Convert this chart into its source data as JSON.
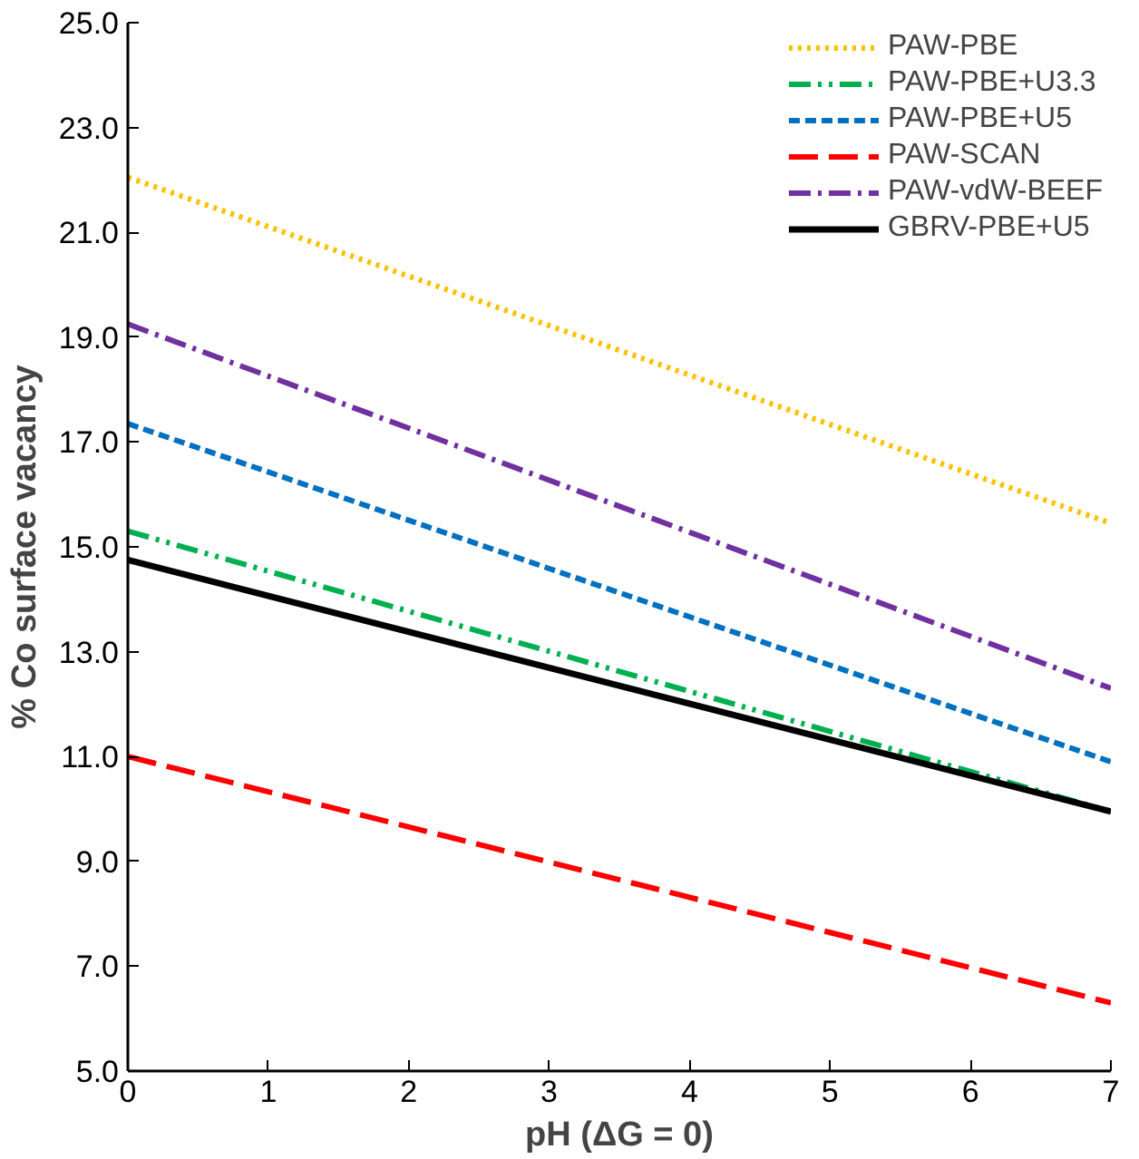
{
  "chart_data": {
    "type": "line",
    "xlabel": "pH (ΔG = 0)",
    "ylabel": "% Co surface vacancy",
    "x": [
      0,
      7
    ],
    "series": [
      {
        "name": "PAW-PBE",
        "color": "#ffc000",
        "values": [
          22.05,
          15.45
        ],
        "line_style": "dotted"
      },
      {
        "name": "PAW-PBE+U3.3",
        "color": "#00b050",
        "values": [
          15.3,
          9.95
        ],
        "line_style": "dashdotdot"
      },
      {
        "name": "PAW-PBE+U5",
        "color": "#0070c0",
        "values": [
          17.35,
          10.9
        ],
        "line_style": "dashed"
      },
      {
        "name": "PAW-SCAN",
        "color": "#ff0000",
        "values": [
          11.0,
          6.3
        ],
        "line_style": "longdash"
      },
      {
        "name": "PAW-vdW-BEEF",
        "color": "#7030a0",
        "values": [
          19.25,
          12.3
        ],
        "line_style": "dashdot"
      },
      {
        "name": "GBRV-PBE+U5",
        "color": "#000000",
        "values": [
          14.75,
          9.95
        ],
        "line_style": "solid"
      }
    ],
    "xlim": [
      0,
      7
    ],
    "xticks": [
      0,
      1,
      2,
      3,
      4,
      5,
      6,
      7
    ],
    "ylim": [
      5,
      25
    ],
    "yticks": [
      {
        "value": 5,
        "label": "5.0"
      },
      {
        "value": 7,
        "label": "7.0"
      },
      {
        "value": 9,
        "label": "9.0"
      },
      {
        "value": 11,
        "label": "11.0"
      },
      {
        "value": 13,
        "label": "13.0"
      },
      {
        "value": 15,
        "label": "15.0"
      },
      {
        "value": 17,
        "label": "17.0"
      },
      {
        "value": 19,
        "label": "19.0"
      },
      {
        "value": 21,
        "label": "21.0"
      },
      {
        "value": 23,
        "label": "23.0"
      },
      {
        "value": 25,
        "label": "25.0"
      }
    ],
    "grid": false,
    "legend": "top right",
    "marker": "none"
  }
}
